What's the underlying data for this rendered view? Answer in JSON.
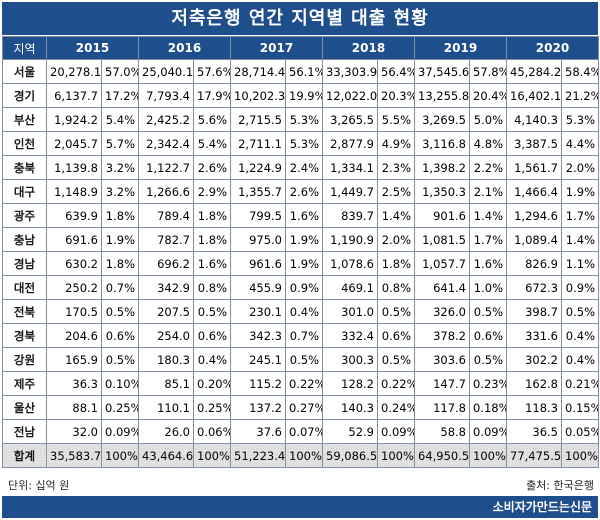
{
  "title": "저축은행 연간 지역별 대출 현황",
  "header": {
    "region_label": "지역",
    "years": [
      "2015",
      "2016",
      "2017",
      "2018",
      "2019",
      "2020"
    ]
  },
  "rows": [
    {
      "region": "서울",
      "cells": [
        [
          "20,278.1",
          "57.0%"
        ],
        [
          "25,040.1",
          "57.6%"
        ],
        [
          "28,714.4",
          "56.1%"
        ],
        [
          "33,303.9",
          "56.4%"
        ],
        [
          "37,545.6",
          "57.8%"
        ],
        [
          "45,284.2",
          "58.4%"
        ]
      ]
    },
    {
      "region": "경기",
      "cells": [
        [
          "6,137.7",
          "17.2%"
        ],
        [
          "7,793.4",
          "17.9%"
        ],
        [
          "10,202.3",
          "19.9%"
        ],
        [
          "12,022.0",
          "20.3%"
        ],
        [
          "13,255.8",
          "20.4%"
        ],
        [
          "16,402.1",
          "21.2%"
        ]
      ]
    },
    {
      "region": "부산",
      "cells": [
        [
          "1,924.2",
          "5.4%"
        ],
        [
          "2,425.2",
          "5.6%"
        ],
        [
          "2,715.5",
          "5.3%"
        ],
        [
          "3,265.5",
          "5.5%"
        ],
        [
          "3,269.5",
          "5.0%"
        ],
        [
          "4,140.3",
          "5.3%"
        ]
      ]
    },
    {
      "region": "인천",
      "cells": [
        [
          "2,045.7",
          "5.7%"
        ],
        [
          "2,342.4",
          "5.4%"
        ],
        [
          "2,711.1",
          "5.3%"
        ],
        [
          "2,877.9",
          "4.9%"
        ],
        [
          "3,116.8",
          "4.8%"
        ],
        [
          "3,387.5",
          "4.4%"
        ]
      ]
    },
    {
      "region": "충북",
      "cells": [
        [
          "1,139.8",
          "3.2%"
        ],
        [
          "1,122.7",
          "2.6%"
        ],
        [
          "1,224.9",
          "2.4%"
        ],
        [
          "1,334.1",
          "2.3%"
        ],
        [
          "1,398.2",
          "2.2%"
        ],
        [
          "1,561.7",
          "2.0%"
        ]
      ]
    },
    {
      "region": "대구",
      "cells": [
        [
          "1,148.9",
          "3.2%"
        ],
        [
          "1,266.6",
          "2.9%"
        ],
        [
          "1,355.7",
          "2.6%"
        ],
        [
          "1,449.7",
          "2.5%"
        ],
        [
          "1,350.3",
          "2.1%"
        ],
        [
          "1,466.4",
          "1.9%"
        ]
      ]
    },
    {
      "region": "광주",
      "cells": [
        [
          "639.9",
          "1.8%"
        ],
        [
          "789.4",
          "1.8%"
        ],
        [
          "799.5",
          "1.6%"
        ],
        [
          "839.7",
          "1.4%"
        ],
        [
          "901.6",
          "1.4%"
        ],
        [
          "1,294.6",
          "1.7%"
        ]
      ]
    },
    {
      "region": "충남",
      "cells": [
        [
          "691.6",
          "1.9%"
        ],
        [
          "782.7",
          "1.8%"
        ],
        [
          "975.0",
          "1.9%"
        ],
        [
          "1,190.9",
          "2.0%"
        ],
        [
          "1,081.5",
          "1.7%"
        ],
        [
          "1,089.4",
          "1.4%"
        ]
      ]
    },
    {
      "region": "경남",
      "cells": [
        [
          "630.2",
          "1.8%"
        ],
        [
          "696.2",
          "1.6%"
        ],
        [
          "961.6",
          "1.9%"
        ],
        [
          "1,078.6",
          "1.8%"
        ],
        [
          "1,057.7",
          "1.6%"
        ],
        [
          "826.9",
          "1.1%"
        ]
      ]
    },
    {
      "region": "대전",
      "cells": [
        [
          "250.2",
          "0.7%"
        ],
        [
          "342.9",
          "0.8%"
        ],
        [
          "455.9",
          "0.9%"
        ],
        [
          "469.1",
          "0.8%"
        ],
        [
          "641.4",
          "1.0%"
        ],
        [
          "672.3",
          "0.9%"
        ]
      ]
    },
    {
      "region": "전북",
      "cells": [
        [
          "170.5",
          "0.5%"
        ],
        [
          "207.5",
          "0.5%"
        ],
        [
          "230.1",
          "0.4%"
        ],
        [
          "301.0",
          "0.5%"
        ],
        [
          "326.0",
          "0.5%"
        ],
        [
          "398.7",
          "0.5%"
        ]
      ]
    },
    {
      "region": "경북",
      "cells": [
        [
          "204.6",
          "0.6%"
        ],
        [
          "254.0",
          "0.6%"
        ],
        [
          "342.3",
          "0.7%"
        ],
        [
          "332.4",
          "0.6%"
        ],
        [
          "378.2",
          "0.6%"
        ],
        [
          "331.6",
          "0.4%"
        ]
      ]
    },
    {
      "region": "강원",
      "cells": [
        [
          "165.9",
          "0.5%"
        ],
        [
          "180.3",
          "0.4%"
        ],
        [
          "245.1",
          "0.5%"
        ],
        [
          "300.3",
          "0.5%"
        ],
        [
          "303.6",
          "0.5%"
        ],
        [
          "302.2",
          "0.4%"
        ]
      ]
    },
    {
      "region": "제주",
      "cells": [
        [
          "36.3",
          "0.10%"
        ],
        [
          "85.1",
          "0.20%"
        ],
        [
          "115.2",
          "0.22%"
        ],
        [
          "128.2",
          "0.22%"
        ],
        [
          "147.7",
          "0.23%"
        ],
        [
          "162.8",
          "0.21%"
        ]
      ]
    },
    {
      "region": "울산",
      "cells": [
        [
          "88.1",
          "0.25%"
        ],
        [
          "110.1",
          "0.25%"
        ],
        [
          "137.2",
          "0.27%"
        ],
        [
          "140.3",
          "0.24%"
        ],
        [
          "117.8",
          "0.18%"
        ],
        [
          "118.3",
          "0.15%"
        ]
      ]
    },
    {
      "region": "전남",
      "cells": [
        [
          "32.0",
          "0.09%"
        ],
        [
          "26.0",
          "0.06%"
        ],
        [
          "37.6",
          "0.07%"
        ],
        [
          "52.9",
          "0.09%"
        ],
        [
          "58.8",
          "0.09%"
        ],
        [
          "36.5",
          "0.05%"
        ]
      ]
    }
  ],
  "total": {
    "region": "합계",
    "cells": [
      [
        "35,583.7",
        "100%"
      ],
      [
        "43,464.6",
        "100%"
      ],
      [
        "51,223.4",
        "100%"
      ],
      [
        "59,086.5",
        "100%"
      ],
      [
        "64,950.5",
        "100%"
      ],
      [
        "77,475.5",
        "100%"
      ]
    ]
  },
  "footer": {
    "unit": "단위: 십억 원",
    "source": "출처: 한국은행"
  },
  "brand": "소비자가만드는신문",
  "colors": {
    "header_bg": "#1f4e8c",
    "header_text": "#ffffff",
    "border": "#7f8ea5",
    "total_bg": "#e4e4e4"
  }
}
